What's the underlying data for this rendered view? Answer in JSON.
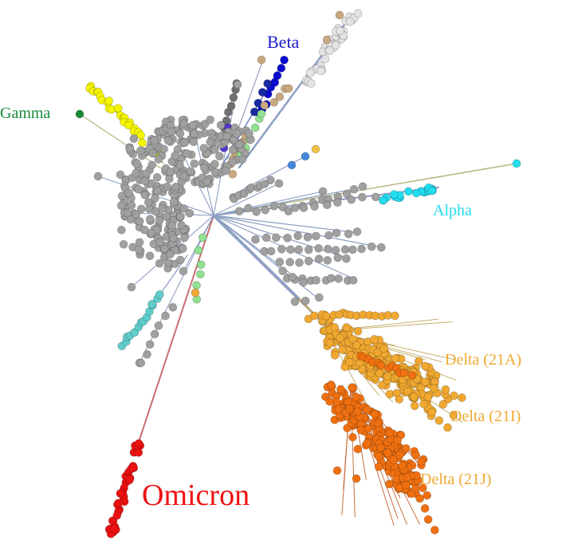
{
  "labels": {
    "gamma": "Gamma",
    "beta": "Beta",
    "alpha": "Alpha",
    "delta_21a": "Delta (21A)",
    "delta_21i": "Delta (21I)",
    "delta_21j": "Delta (21J)",
    "omicron": "Omicron"
  },
  "colors": {
    "gamma": "#1a8a3a",
    "beta": "#1a1acc",
    "alpha": "#22ddf0",
    "delta": "#f0a830",
    "delta_dark": "#f07010",
    "omicron": "#ee1111",
    "grey_node": "#a0a0a0",
    "branch": "#8899bb",
    "omicron_branch": "#c87070"
  }
}
